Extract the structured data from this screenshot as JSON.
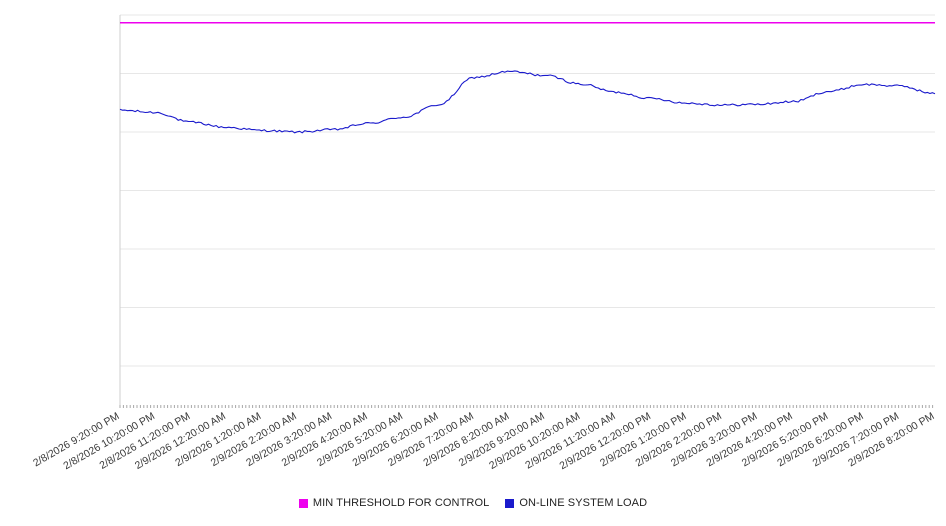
{
  "chart_data": {
    "type": "line",
    "title": "",
    "xlabel": "",
    "ylabel": "",
    "categories": [
      "2/8/2026 9:20:00 PM",
      "2/8/2026 10:20:00 PM",
      "2/8/2026 11:20:00 PM",
      "2/9/2026 12:20:00 AM",
      "2/9/2026 1:20:00 AM",
      "2/9/2026 2:20:00 AM",
      "2/9/2026 3:20:00 AM",
      "2/9/2026 4:20:00 AM",
      "2/9/2026 5:20:00 AM",
      "2/9/2026 6:20:00 AM",
      "2/9/2026 7:20:00 AM",
      "2/9/2026 8:20:00 AM",
      "2/9/2026 9:20:00 AM",
      "2/9/2026 10:20:00 AM",
      "2/9/2026 11:20:00 AM",
      "2/9/2026 12:20:00 PM",
      "2/9/2026 1:20:00 PM",
      "2/9/2026 2:20:00 PM",
      "2/9/2026 3:20:00 PM",
      "2/9/2026 4:20:00 PM",
      "2/9/2026 5:20:00 PM",
      "2/9/2026 6:20:00 PM",
      "2/9/2026 7:20:00 PM",
      "2/9/2026 8:20:00 PM"
    ],
    "series": [
      {
        "name": "MIN THRESHOLD FOR CONTROL",
        "color": "#ee00ee",
        "style": "constant",
        "value": 98
      },
      {
        "name": "ON-LINE SYSTEM LOAD",
        "color": "#1a1acc",
        "values": [
          75.6,
          75.0,
          72.5,
          71.2,
          70.4,
          70.0,
          70.6,
          72.2,
          73.8,
          77.0,
          84.0,
          85.5,
          84.5,
          82.3,
          80.2,
          78.6,
          77.4,
          76.9,
          77.1,
          77.8,
          80.4,
          82.2,
          81.8,
          79.8
        ]
      }
    ],
    "ylim": [
      0,
      100
    ],
    "gridline_values": [
      10,
      25,
      40,
      55,
      70,
      85,
      100
    ],
    "grid": true,
    "y_tick_labels_visible": false,
    "legend_position": "bottom"
  },
  "style": {
    "gridline_color": "#e7e7e7",
    "axis_color": "#cfcfcf",
    "tick_color": "#a8a8a8",
    "tick_label_color": "#3a3a3a"
  }
}
